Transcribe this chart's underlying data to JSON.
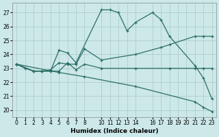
{
  "bg_color": "#cce8e8",
  "grid_color": "#aac8c8",
  "line_color": "#2a6e62",
  "xlabel": "Humidex (Indice chaleur)",
  "ylim": [
    19.5,
    27.7
  ],
  "xlim": [
    -0.5,
    23.5
  ],
  "yticks": [
    20,
    21,
    22,
    23,
    24,
    25,
    26,
    27
  ],
  "xticks": [
    0,
    1,
    2,
    3,
    4,
    5,
    6,
    7,
    8,
    10,
    11,
    12,
    13,
    14,
    16,
    17,
    18,
    19,
    20,
    21,
    22,
    23
  ],
  "line1_x": [
    0,
    1,
    2,
    3,
    4,
    5,
    6,
    7,
    10,
    11,
    12,
    13,
    14,
    16,
    17,
    18,
    21,
    22,
    23
  ],
  "line1_y": [
    23.3,
    23.0,
    22.8,
    22.8,
    22.8,
    24.3,
    24.1,
    23.4,
    27.2,
    27.2,
    27.0,
    25.7,
    26.3,
    27.0,
    26.5,
    25.3,
    23.2,
    22.3,
    20.8
  ],
  "line2_x": [
    0,
    2,
    3,
    4,
    5,
    6,
    7,
    8,
    10,
    14,
    17,
    18,
    21,
    22,
    23
  ],
  "line2_y": [
    23.3,
    22.8,
    22.8,
    22.9,
    23.4,
    23.3,
    23.3,
    24.4,
    23.6,
    24.0,
    24.5,
    24.7,
    25.3,
    25.3,
    25.3
  ],
  "line3_x": [
    0,
    2,
    3,
    4,
    5,
    6,
    7,
    8,
    10,
    14,
    18,
    21,
    22,
    23
  ],
  "line3_y": [
    23.3,
    22.8,
    22.8,
    22.8,
    22.8,
    23.4,
    22.9,
    23.3,
    23.0,
    23.0,
    23.0,
    23.0,
    23.0,
    23.0
  ],
  "line4_x": [
    0,
    5,
    8,
    14,
    21,
    22,
    23
  ],
  "line4_y": [
    23.3,
    22.7,
    22.4,
    21.7,
    20.6,
    20.2,
    19.9
  ]
}
